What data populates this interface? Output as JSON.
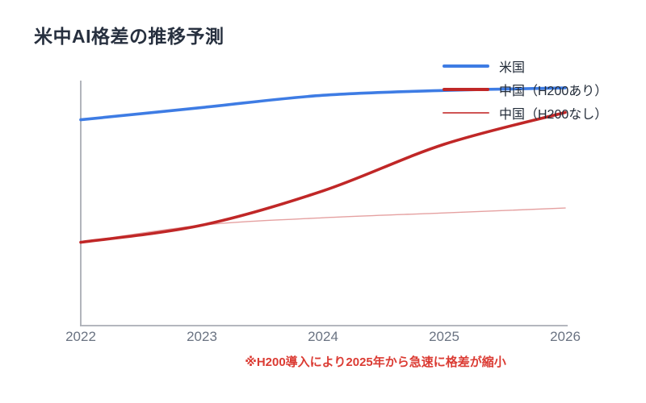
{
  "title": "米中AI格差の推移予測",
  "title_color": "#27303f",
  "chart_data": {
    "type": "line",
    "title": "米中AI格差の推移予測",
    "x_categories": [
      "2022",
      "2023",
      "2024",
      "2025",
      "2026"
    ],
    "xlabel": "",
    "ylabel": "",
    "ylim": [
      0,
      100
    ],
    "y_ticks_visible": false,
    "grid": false,
    "legend_position": "top-right",
    "axis_line_color": "#a9adb4",
    "tick_label_color": "#6a7382",
    "series": [
      {
        "name": "米国",
        "values": [
          84,
          89,
          94,
          96,
          97
        ],
        "color": "#3e7ce4",
        "line_width": 3.6,
        "line_opacity": 1
      },
      {
        "name": "中国（H200あり）",
        "values": [
          34,
          41,
          55,
          74,
          87
        ],
        "color": "#c02727",
        "line_width": 3.6,
        "line_opacity": 1
      },
      {
        "name": "中国（H200なし）",
        "values": [
          34,
          41,
          44,
          46,
          48
        ],
        "color": "#cf5454",
        "line_width": 1.4,
        "line_opacity": 0.55
      }
    ],
    "annotation": "※H200導入により2025年から急速に格差が縮小"
  },
  "annotation": {
    "text": "※H200導入により2025年から急速に格差が縮小",
    "color": "#db3b33"
  }
}
